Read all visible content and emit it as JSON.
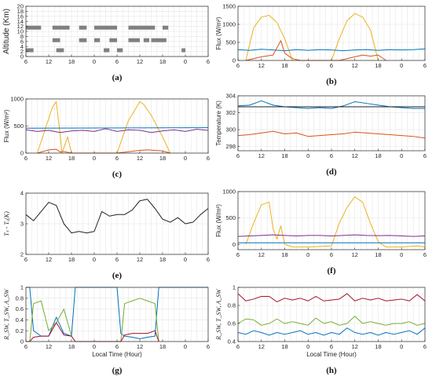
{
  "colors": {
    "blue": "#0072bd",
    "red": "#d95319",
    "yellow": "#edb120",
    "purple": "#7e2f8e",
    "green": "#77ac30",
    "black": "#222222",
    "maroon": "#a2142f",
    "bar": "#808080",
    "grid": "#e6e6e6",
    "frame": "#262626"
  },
  "x_tick_labels": [
    "6",
    "12",
    "18",
    "0",
    "6",
    "12",
    "18",
    "0",
    "6"
  ],
  "chart_data": [
    {
      "id": "a",
      "panel_label": "(a)",
      "type": "bar",
      "xlabel": "",
      "ylabel": "Altitude (Km)",
      "ylim": [
        0,
        20
      ],
      "yticks": [
        0,
        2,
        4,
        6,
        8,
        10,
        12,
        14,
        16,
        18,
        20
      ],
      "grid": true,
      "segments": [
        {
          "y": 11.5,
          "x": [
            [
              6,
              10
            ],
            [
              13,
              17.5
            ],
            [
              20,
              22
            ],
            [
              24,
              30
            ],
            [
              33,
              40
            ],
            [
              42,
              43.5
            ]
          ]
        },
        {
          "y": 6.5,
          "x": [
            [
              13,
              15
            ],
            [
              20,
              22
            ],
            [
              24,
              25.5
            ],
            [
              28,
              30
            ],
            [
              33,
              36
            ],
            [
              37,
              38.5
            ],
            [
              39,
              43
            ]
          ]
        },
        {
          "y": 2.5,
          "x": [
            [
              6,
              8
            ],
            [
              14,
              16
            ],
            [
              26.5,
              28
            ],
            [
              30,
              31.5
            ],
            [
              47,
              48
            ]
          ]
        }
      ]
    },
    {
      "id": "b",
      "panel_label": "(b)",
      "type": "line",
      "xlabel": "",
      "ylabel": "Flux (W/m²)",
      "ylim": [
        0,
        1500
      ],
      "yticks": [
        0,
        500,
        1000,
        1500
      ],
      "grid": true,
      "series": [
        {
          "color": "yellow",
          "x": [
            8,
            10,
            12,
            14,
            16,
            18,
            20,
            30,
            32,
            34,
            36,
            38,
            40,
            42
          ],
          "y": [
            0,
            900,
            1200,
            1250,
            1050,
            600,
            0,
            0,
            600,
            1100,
            1300,
            1200,
            850,
            0
          ]
        },
        {
          "color": "blue",
          "x": [
            6,
            9,
            12,
            15,
            18,
            21,
            24,
            27,
            30,
            33,
            36,
            39,
            42,
            45,
            48,
            51,
            54
          ],
          "y": [
            300,
            280,
            310,
            290,
            270,
            300,
            280,
            300,
            290,
            270,
            290,
            300,
            280,
            300,
            290,
            300,
            320
          ]
        },
        {
          "color": "red",
          "x": [
            8,
            12,
            15,
            17,
            18,
            20,
            22,
            32,
            36,
            38,
            40,
            42,
            44
          ],
          "y": [
            0,
            100,
            150,
            550,
            200,
            50,
            0,
            0,
            100,
            150,
            120,
            150,
            0
          ]
        }
      ]
    },
    {
      "id": "c",
      "panel_label": "(c)",
      "type": "line",
      "xlabel": "",
      "ylabel": "Flux (W/m²)",
      "ylim": [
        0,
        1000
      ],
      "yticks": [
        0,
        500,
        1000
      ],
      "grid": true,
      "series": [
        {
          "color": "yellow",
          "x": [
            9,
            13,
            14,
            15,
            15.5,
            16,
            17,
            18,
            30,
            33,
            36,
            37,
            39,
            42,
            44
          ],
          "y": [
            0,
            850,
            950,
            350,
            0,
            100,
            300,
            0,
            0,
            600,
            950,
            900,
            700,
            300,
            0
          ]
        },
        {
          "color": "blue",
          "x": [
            6,
            54
          ],
          "y": [
            460,
            470
          ]
        },
        {
          "color": "purple",
          "x": [
            6,
            9,
            12,
            15,
            18,
            21,
            24,
            27,
            30,
            33,
            36,
            39,
            42,
            45,
            48,
            51,
            54
          ],
          "y": [
            430,
            400,
            420,
            380,
            410,
            420,
            400,
            450,
            400,
            430,
            420,
            380,
            410,
            430,
            400,
            440,
            420
          ]
        },
        {
          "color": "red",
          "x": [
            9,
            12,
            14,
            15,
            16,
            18,
            30,
            36,
            38,
            42,
            44
          ],
          "y": [
            0,
            60,
            70,
            20,
            30,
            0,
            0,
            50,
            60,
            40,
            0
          ]
        }
      ]
    },
    {
      "id": "d",
      "panel_label": "(d)",
      "type": "line",
      "xlabel": "",
      "ylabel": "Temperature (K)",
      "ylim": [
        297.5,
        304
      ],
      "yticks": [
        298,
        300,
        302,
        304
      ],
      "grid": true,
      "series": [
        {
          "color": "blue",
          "x": [
            6,
            9,
            12,
            15,
            18,
            21,
            24,
            27,
            30,
            33,
            36,
            39,
            42,
            45,
            48,
            51,
            54
          ],
          "y": [
            302.8,
            302.9,
            303.4,
            302.9,
            302.7,
            302.6,
            302.5,
            302.6,
            302.5,
            302.8,
            303.3,
            303.1,
            302.9,
            302.7,
            302.6,
            302.5,
            302.5
          ]
        },
        {
          "color": "black",
          "x": [
            6,
            54
          ],
          "y": [
            302.7,
            302.7
          ]
        },
        {
          "color": "red",
          "x": [
            6,
            9,
            12,
            15,
            18,
            21,
            24,
            27,
            30,
            33,
            36,
            39,
            42,
            45,
            48,
            51,
            54
          ],
          "y": [
            299.3,
            299.4,
            299.6,
            299.8,
            299.5,
            299.6,
            299.2,
            299.3,
            299.4,
            299.5,
            299.7,
            299.6,
            299.5,
            299.4,
            299.3,
            299.2,
            299.0
          ]
        }
      ]
    },
    {
      "id": "e",
      "panel_label": "(e)",
      "type": "line",
      "xlabel": "",
      "ylabel": "Tₛ - Tₐ(K)",
      "ylim": [
        2,
        4
      ],
      "yticks": [
        2,
        3,
        4
      ],
      "grid": true,
      "series": [
        {
          "color": "black",
          "x": [
            6,
            8,
            10,
            12,
            14,
            16,
            18,
            20,
            22,
            24,
            26,
            28,
            30,
            32,
            34,
            36,
            38,
            40,
            42,
            44,
            46,
            48,
            50,
            52,
            54
          ],
          "y": [
            3.3,
            3.1,
            3.4,
            3.7,
            3.6,
            3.0,
            2.7,
            2.75,
            2.7,
            2.75,
            3.4,
            3.25,
            3.3,
            3.3,
            3.45,
            3.75,
            3.8,
            3.5,
            3.15,
            3.05,
            3.2,
            3.0,
            3.05,
            3.3,
            3.5
          ]
        }
      ]
    },
    {
      "id": "f",
      "panel_label": "(f)",
      "type": "line",
      "xlabel": "",
      "ylabel": "Flux (W/m²)",
      "ylim": [
        -100,
        1000
      ],
      "yticks": [
        0,
        500,
        1000
      ],
      "grid": true,
      "series": [
        {
          "color": "yellow",
          "x": [
            8,
            10,
            12,
            14,
            15,
            16,
            17,
            18,
            20,
            24,
            30,
            32,
            34,
            36,
            38,
            40,
            42,
            44,
            48,
            52,
            54
          ],
          "y": [
            0,
            400,
            750,
            800,
            300,
            100,
            350,
            0,
            -50,
            -50,
            -30,
            400,
            700,
            900,
            800,
            400,
            50,
            -50,
            -50,
            -30,
            -50
          ]
        },
        {
          "color": "purple",
          "x": [
            6,
            9,
            12,
            15,
            18,
            21,
            24,
            27,
            30,
            33,
            36,
            39,
            42,
            45,
            48,
            51,
            54
          ],
          "y": [
            150,
            160,
            170,
            180,
            170,
            160,
            170,
            170,
            160,
            170,
            180,
            170,
            165,
            170,
            160,
            150,
            160
          ]
        },
        {
          "color": "blue",
          "x": [
            6,
            54
          ],
          "y": [
            30,
            30
          ]
        }
      ]
    },
    {
      "id": "g",
      "panel_label": "(g)",
      "type": "line",
      "xlabel": "Local Time (Hour)",
      "ylabel": "R_SW, T_SW, A_SW",
      "ylim": [
        0,
        1
      ],
      "yticks": [
        0,
        0.2,
        0.4,
        0.6,
        0.8,
        1
      ],
      "grid": true,
      "series": [
        {
          "color": "blue",
          "x": [
            6,
            7,
            8,
            9,
            10,
            12,
            14,
            16,
            18,
            19,
            30,
            31,
            32,
            34,
            36,
            38,
            40,
            41,
            54
          ],
          "y": [
            1,
            1,
            0.2,
            0.15,
            0.1,
            0.1,
            0.45,
            0.15,
            0.1,
            1,
            1,
            0.15,
            0.1,
            0.08,
            0.05,
            0.08,
            0.1,
            1,
            1
          ]
        },
        {
          "color": "green",
          "x": [
            6,
            7,
            8,
            10,
            12,
            14,
            16,
            18,
            19,
            30,
            31,
            32,
            34,
            36,
            38,
            40,
            41
          ],
          "y": [
            0,
            0,
            0.7,
            0.75,
            0.2,
            0.35,
            0.6,
            0.1,
            0,
            0,
            0,
            0.7,
            0.75,
            0.8,
            0.75,
            0.7,
            0
          ]
        },
        {
          "color": "maroon",
          "x": [
            6,
            7,
            8,
            10,
            12,
            14,
            16,
            18,
            19,
            30,
            31,
            32,
            34,
            36,
            38,
            40,
            41
          ],
          "y": [
            0,
            0,
            0.08,
            0.1,
            0.1,
            0.35,
            0.12,
            0.1,
            0,
            0,
            0,
            0.12,
            0.15,
            0.15,
            0.15,
            0.2,
            0
          ]
        }
      ]
    },
    {
      "id": "h",
      "panel_label": "(h)",
      "type": "line",
      "xlabel": "Local Time (Hour)",
      "ylabel": "R_SW, T_SW, A_SW",
      "ylim": [
        0.4,
        1
      ],
      "yticks": [
        0.4,
        0.6,
        0.8,
        1
      ],
      "grid": true,
      "series": [
        {
          "color": "maroon",
          "x": [
            6,
            8,
            10,
            12,
            14,
            16,
            18,
            20,
            22,
            24,
            26,
            28,
            30,
            32,
            34,
            36,
            38,
            40,
            42,
            44,
            46,
            48,
            50,
            52,
            54
          ],
          "y": [
            0.93,
            0.85,
            0.87,
            0.9,
            0.9,
            0.84,
            0.88,
            0.86,
            0.88,
            0.85,
            0.9,
            0.85,
            0.86,
            0.87,
            0.93,
            0.85,
            0.88,
            0.86,
            0.88,
            0.85,
            0.86,
            0.87,
            0.85,
            0.92,
            0.85
          ]
        },
        {
          "color": "green",
          "x": [
            6,
            8,
            10,
            12,
            14,
            16,
            18,
            20,
            22,
            24,
            26,
            28,
            30,
            32,
            34,
            36,
            38,
            40,
            42,
            44,
            46,
            48,
            50,
            52,
            54
          ],
          "y": [
            0.6,
            0.65,
            0.64,
            0.58,
            0.6,
            0.65,
            0.6,
            0.62,
            0.6,
            0.58,
            0.66,
            0.6,
            0.62,
            0.58,
            0.6,
            0.68,
            0.6,
            0.62,
            0.6,
            0.58,
            0.6,
            0.6,
            0.62,
            0.58,
            0.6
          ]
        },
        {
          "color": "blue",
          "x": [
            6,
            8,
            10,
            12,
            14,
            16,
            18,
            20,
            22,
            24,
            26,
            28,
            30,
            32,
            34,
            36,
            38,
            40,
            42,
            44,
            46,
            48,
            50,
            52,
            54
          ],
          "y": [
            0.5,
            0.48,
            0.52,
            0.5,
            0.47,
            0.5,
            0.48,
            0.5,
            0.52,
            0.48,
            0.5,
            0.47,
            0.5,
            0.48,
            0.55,
            0.5,
            0.48,
            0.5,
            0.47,
            0.5,
            0.48,
            0.5,
            0.52,
            0.48,
            0.55
          ]
        }
      ]
    }
  ]
}
